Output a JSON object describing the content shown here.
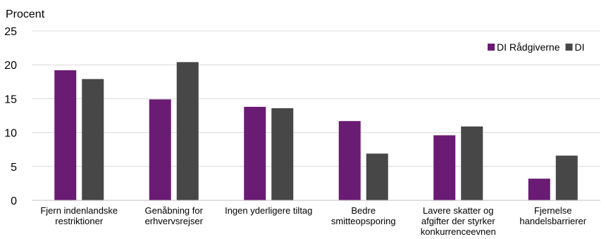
{
  "chart_data": {
    "type": "bar",
    "ylabel": "Procent",
    "ylim": [
      0,
      25
    ],
    "yticks": [
      "0",
      "5",
      "10",
      "15",
      "20",
      "25"
    ],
    "grid": true,
    "legend_position": "top-right",
    "categories": [
      [
        "Fjern indenlandske",
        "restriktioner"
      ],
      [
        "Genåbning for",
        "erhvervsrejser"
      ],
      [
        "Ingen yderligere tiltag"
      ],
      [
        "Bedre",
        "smitteopsporing"
      ],
      [
        "Lavere skatter og",
        "afgifter der styrker",
        "konkurrenceevnen"
      ],
      [
        "Fjernelse",
        "handelsbarrierer"
      ]
    ],
    "series": [
      {
        "name": "DI Rådgiverne",
        "color": "#6a1b74",
        "values": [
          19.2,
          14.9,
          13.8,
          11.7,
          9.6,
          3.2
        ]
      },
      {
        "name": "DI",
        "color": "#474747",
        "values": [
          17.9,
          20.4,
          13.6,
          6.9,
          10.9,
          6.6
        ]
      }
    ]
  }
}
